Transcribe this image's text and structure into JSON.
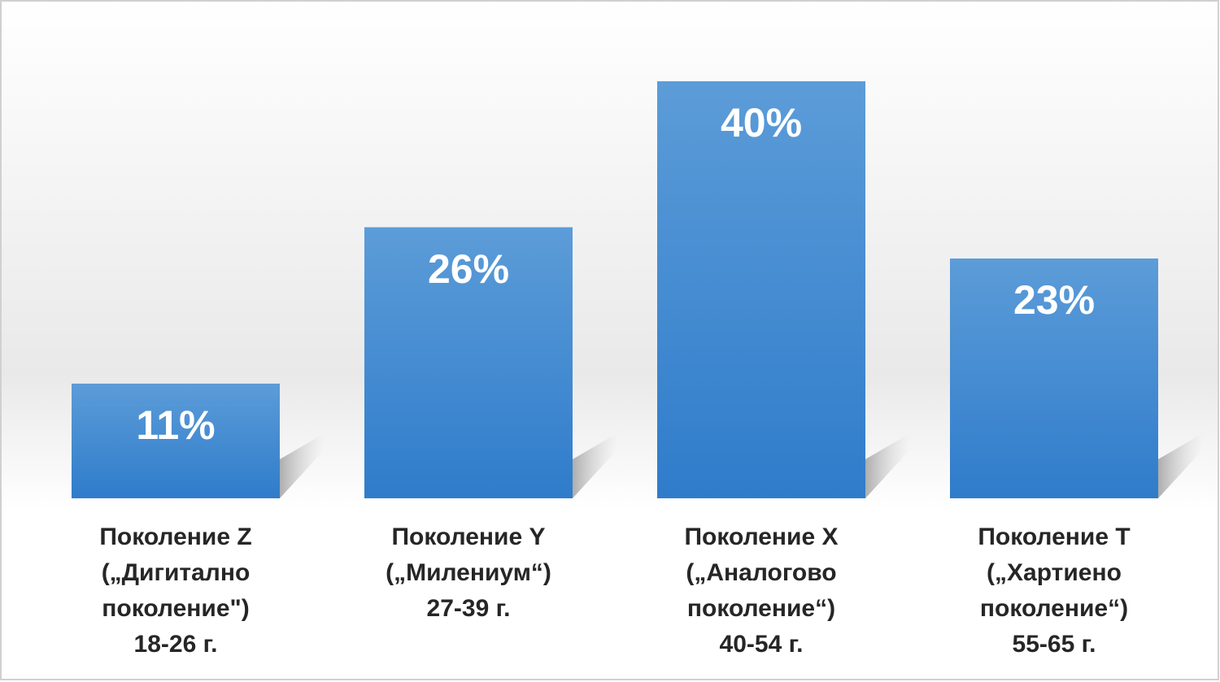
{
  "chart_data": {
    "type": "bar",
    "categories": [
      [
        "Поколение Z",
        "(„Дигитално",
        "поколение\")",
        "18-26 г."
      ],
      [
        "Поколение Y",
        "(„Милениум“)",
        "27-39 г."
      ],
      [
        "Поколение X",
        "(„Аналогово",
        "поколение“)",
        "40-54 г."
      ],
      [
        "Поколение T",
        "(„Хартиено",
        "поколение“)",
        "55-65 г."
      ]
    ],
    "values": [
      11,
      26,
      40,
      23
    ],
    "value_labels": [
      "11%",
      "26%",
      "40%",
      "23%"
    ],
    "color": "#4a8dd6"
  }
}
